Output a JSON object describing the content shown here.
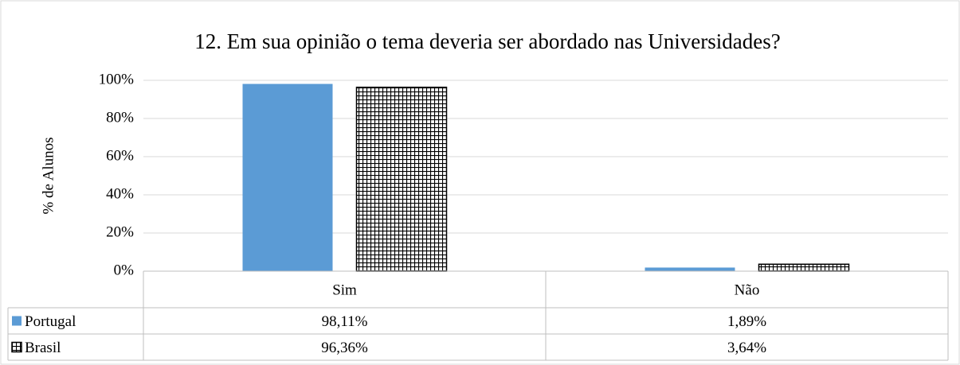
{
  "chart_data": {
    "type": "bar",
    "title": "12. Em sua opinião o tema deveria ser abordado nas Universidades?",
    "y_label": "% de Alunos",
    "categories": [
      "Sim",
      "Não"
    ],
    "series": [
      {
        "name": "Portugal",
        "color": "#5b9bd5",
        "values": [
          98.11,
          1.89
        ],
        "value_labels": [
          "98,11%",
          "1,89%"
        ]
      },
      {
        "name": "Brasil",
        "color": "#000000",
        "pattern": "grid",
        "values": [
          96.36,
          3.64
        ],
        "value_labels": [
          "96,36%",
          "3,64%"
        ]
      }
    ],
    "ylim": [
      0,
      100
    ],
    "yticks": [
      {
        "value": 0,
        "label": "0%"
      },
      {
        "value": 20,
        "label": "20%"
      },
      {
        "value": 40,
        "label": "40%"
      },
      {
        "value": 60,
        "label": "60%"
      },
      {
        "value": 80,
        "label": "80%"
      },
      {
        "value": 100,
        "label": "100%"
      }
    ],
    "grid": true,
    "data_table": true
  }
}
